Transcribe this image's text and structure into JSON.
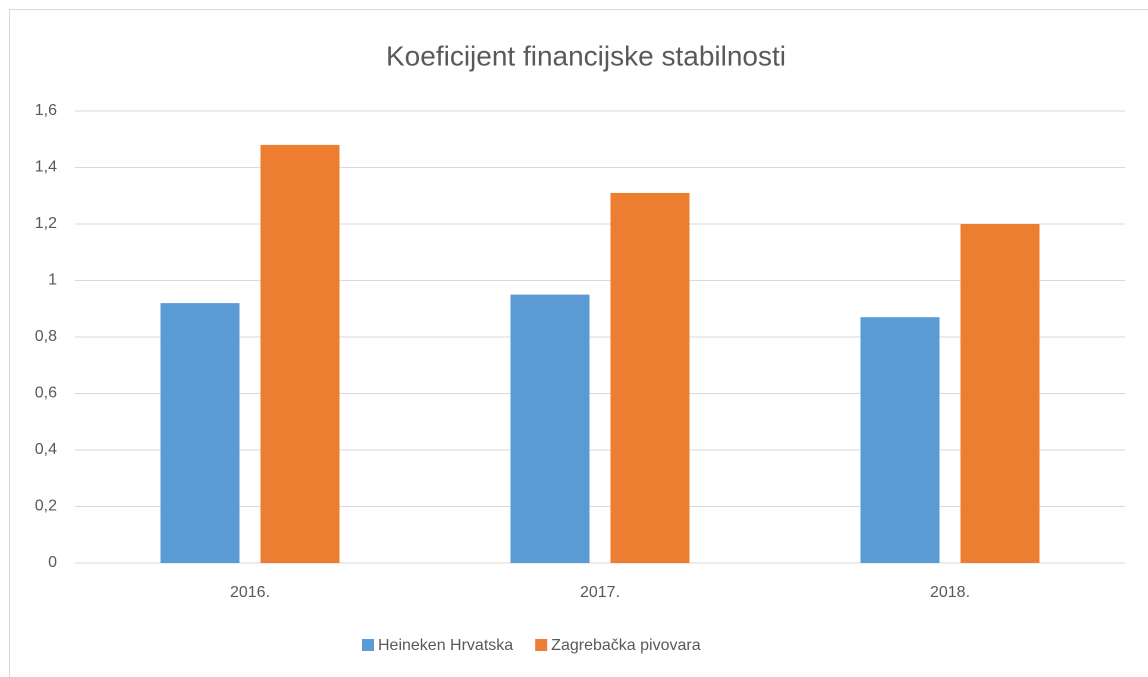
{
  "chart_data": {
    "type": "bar",
    "title": "Koeficijent financijske stabilnosti",
    "categories": [
      "2016.",
      "2017.",
      "2018."
    ],
    "series": [
      {
        "name": "Heineken Hrvatska",
        "color": "#5b9bd5",
        "values": [
          0.92,
          0.95,
          0.87
        ]
      },
      {
        "name": "Zagrebačka pivovara",
        "color": "#ed7d31",
        "values": [
          1.48,
          1.31,
          1.2
        ]
      }
    ],
    "ylim": [
      0,
      1.6
    ],
    "yticks": [
      0,
      {
        "value": 0.2,
        "label": "0,2"
      },
      {
        "value": 0.4,
        "label": "0,4"
      },
      {
        "value": 0.6,
        "label": "0,6"
      },
      {
        "value": 0.8,
        "label": "0,8"
      },
      1,
      {
        "value": 1.2,
        "label": "1,2"
      },
      {
        "value": 1.4,
        "label": "1,4"
      },
      {
        "value": 1.6,
        "label": "1,6"
      }
    ],
    "grid": true,
    "legend": "bottom"
  }
}
